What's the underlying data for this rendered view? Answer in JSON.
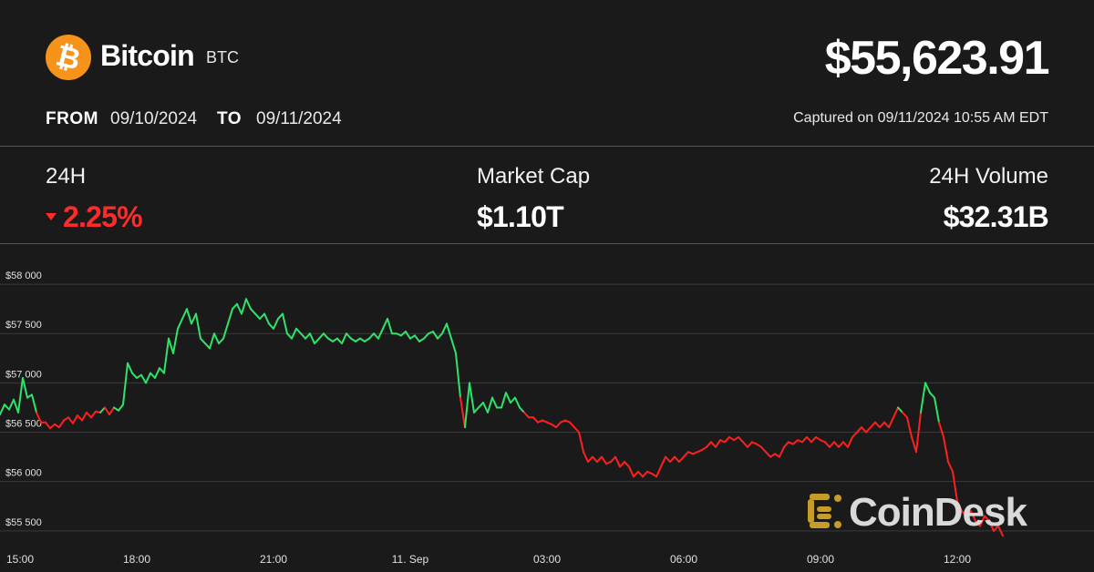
{
  "header": {
    "coin_name": "Bitcoin",
    "coin_symbol": "BTC",
    "logo_glyph": "₿",
    "logo_color": "#f7931a",
    "price": "$55,623.91",
    "from_label": "FROM",
    "from_date": "09/10/2024",
    "to_label": "TO",
    "to_date": "09/11/2024",
    "captured": "Captured on 09/11/2024 10:55 AM EDT"
  },
  "stats": {
    "change_label": "24H",
    "change_value": "2.25%",
    "change_direction": "down",
    "market_cap_label": "Market Cap",
    "market_cap_value": "$1.10T",
    "volume_label": "24H Volume",
    "volume_value": "$32.31B"
  },
  "colors": {
    "background": "#1a1a1a",
    "up": "#2ee36a",
    "down": "#ff1f1f",
    "gridline": "#3a3a3a"
  },
  "watermark": {
    "text": "CoinDesk",
    "icon": "coindesk-logo-icon"
  },
  "chart_data": {
    "type": "line",
    "x_unit": "hour",
    "x_ticks": [
      {
        "x": 15,
        "label": "15:00"
      },
      {
        "x": 18,
        "label": "18:00"
      },
      {
        "x": 21,
        "label": "21:00"
      },
      {
        "x": 24,
        "label": "11. Sep"
      },
      {
        "x": 27,
        "label": "03:00"
      },
      {
        "x": 30,
        "label": "06:00"
      },
      {
        "x": 33,
        "label": "09:00"
      },
      {
        "x": 36,
        "label": "12:00"
      }
    ],
    "y_ticks": [
      {
        "y": 55500,
        "label": "$55 500"
      },
      {
        "y": 56000,
        "label": "$56 000"
      },
      {
        "y": 56500,
        "label": "$56 500"
      },
      {
        "y": 57000,
        "label": "$57 000"
      },
      {
        "y": 57500,
        "label": "$57 500"
      },
      {
        "y": 58000,
        "label": "$58 000"
      }
    ],
    "xlim": [
      15,
      39
    ],
    "ylim": [
      55360,
      58130
    ],
    "grid": true,
    "baseline": 56720,
    "points": [
      [
        15.0,
        56680
      ],
      [
        15.1,
        56780
      ],
      [
        15.2,
        56730
      ],
      [
        15.3,
        56830
      ],
      [
        15.4,
        56700
      ],
      [
        15.5,
        57050
      ],
      [
        15.6,
        56850
      ],
      [
        15.7,
        56880
      ],
      [
        15.8,
        56700
      ],
      [
        15.9,
        56600
      ],
      [
        16.0,
        56600
      ],
      [
        16.1,
        56540
      ],
      [
        16.2,
        56580
      ],
      [
        16.3,
        56550
      ],
      [
        16.4,
        56620
      ],
      [
        16.5,
        56650
      ],
      [
        16.6,
        56590
      ],
      [
        16.7,
        56670
      ],
      [
        16.8,
        56620
      ],
      [
        16.9,
        56700
      ],
      [
        17.0,
        56650
      ],
      [
        17.1,
        56710
      ],
      [
        17.2,
        56700
      ],
      [
        17.3,
        56750
      ],
      [
        17.4,
        56680
      ],
      [
        17.5,
        56750
      ],
      [
        17.6,
        56720
      ],
      [
        17.7,
        56780
      ],
      [
        17.8,
        57200
      ],
      [
        17.9,
        57100
      ],
      [
        18.0,
        57050
      ],
      [
        18.1,
        57080
      ],
      [
        18.2,
        57000
      ],
      [
        18.3,
        57100
      ],
      [
        18.4,
        57050
      ],
      [
        18.5,
        57150
      ],
      [
        18.6,
        57100
      ],
      [
        18.7,
        57450
      ],
      [
        18.8,
        57300
      ],
      [
        18.9,
        57550
      ],
      [
        19.0,
        57650
      ],
      [
        19.1,
        57750
      ],
      [
        19.2,
        57600
      ],
      [
        19.3,
        57700
      ],
      [
        19.4,
        57450
      ],
      [
        19.5,
        57400
      ],
      [
        19.6,
        57350
      ],
      [
        19.7,
        57500
      ],
      [
        19.8,
        57400
      ],
      [
        19.9,
        57450
      ],
      [
        20.0,
        57600
      ],
      [
        20.1,
        57750
      ],
      [
        20.2,
        57800
      ],
      [
        20.3,
        57700
      ],
      [
        20.4,
        57850
      ],
      [
        20.5,
        57750
      ],
      [
        20.6,
        57700
      ],
      [
        20.7,
        57650
      ],
      [
        20.8,
        57700
      ],
      [
        20.9,
        57600
      ],
      [
        21.0,
        57550
      ],
      [
        21.1,
        57650
      ],
      [
        21.2,
        57700
      ],
      [
        21.3,
        57500
      ],
      [
        21.4,
        57450
      ],
      [
        21.5,
        57550
      ],
      [
        21.6,
        57500
      ],
      [
        21.7,
        57450
      ],
      [
        21.8,
        57500
      ],
      [
        21.9,
        57400
      ],
      [
        22.0,
        57450
      ],
      [
        22.1,
        57500
      ],
      [
        22.2,
        57450
      ],
      [
        22.3,
        57420
      ],
      [
        22.4,
        57450
      ],
      [
        22.5,
        57400
      ],
      [
        22.6,
        57500
      ],
      [
        22.7,
        57450
      ],
      [
        22.8,
        57420
      ],
      [
        22.9,
        57450
      ],
      [
        23.0,
        57420
      ],
      [
        23.1,
        57450
      ],
      [
        23.2,
        57500
      ],
      [
        23.3,
        57450
      ],
      [
        23.4,
        57550
      ],
      [
        23.5,
        57650
      ],
      [
        23.6,
        57500
      ],
      [
        23.7,
        57500
      ],
      [
        23.8,
        57480
      ],
      [
        23.9,
        57520
      ],
      [
        24.0,
        57450
      ],
      [
        24.1,
        57480
      ],
      [
        24.2,
        57420
      ],
      [
        24.3,
        57450
      ],
      [
        24.4,
        57500
      ],
      [
        24.5,
        57520
      ],
      [
        24.6,
        57450
      ],
      [
        24.7,
        57500
      ],
      [
        24.8,
        57600
      ],
      [
        24.9,
        57450
      ],
      [
        25.0,
        57300
      ],
      [
        25.1,
        56850
      ],
      [
        25.2,
        56550
      ],
      [
        25.3,
        57000
      ],
      [
        25.4,
        56700
      ],
      [
        25.5,
        56750
      ],
      [
        25.6,
        56800
      ],
      [
        25.7,
        56700
      ],
      [
        25.8,
        56850
      ],
      [
        25.9,
        56750
      ],
      [
        26.0,
        56750
      ],
      [
        26.1,
        56900
      ],
      [
        26.2,
        56800
      ],
      [
        26.3,
        56850
      ],
      [
        26.4,
        56750
      ],
      [
        26.5,
        56700
      ],
      [
        26.6,
        56650
      ],
      [
        26.7,
        56650
      ],
      [
        26.8,
        56600
      ],
      [
        26.9,
        56620
      ],
      [
        27.0,
        56600
      ],
      [
        27.1,
        56580
      ],
      [
        27.2,
        56550
      ],
      [
        27.3,
        56600
      ],
      [
        27.4,
        56620
      ],
      [
        27.5,
        56600
      ],
      [
        27.6,
        56550
      ],
      [
        27.7,
        56500
      ],
      [
        27.8,
        56300
      ],
      [
        27.9,
        56200
      ],
      [
        28.0,
        56250
      ],
      [
        28.1,
        56200
      ],
      [
        28.2,
        56250
      ],
      [
        28.3,
        56180
      ],
      [
        28.4,
        56200
      ],
      [
        28.5,
        56250
      ],
      [
        28.6,
        56150
      ],
      [
        28.7,
        56200
      ],
      [
        28.8,
        56150
      ],
      [
        28.9,
        56050
      ],
      [
        29.0,
        56100
      ],
      [
        29.1,
        56050
      ],
      [
        29.2,
        56100
      ],
      [
        29.3,
        56080
      ],
      [
        29.4,
        56050
      ],
      [
        29.5,
        56150
      ],
      [
        29.6,
        56250
      ],
      [
        29.7,
        56200
      ],
      [
        29.8,
        56250
      ],
      [
        29.9,
        56200
      ],
      [
        30.0,
        56250
      ],
      [
        30.1,
        56300
      ],
      [
        30.2,
        56280
      ],
      [
        30.3,
        56300
      ],
      [
        30.4,
        56320
      ],
      [
        30.5,
        56350
      ],
      [
        30.6,
        56400
      ],
      [
        30.7,
        56350
      ],
      [
        30.8,
        56420
      ],
      [
        30.9,
        56400
      ],
      [
        31.0,
        56450
      ],
      [
        31.1,
        56420
      ],
      [
        31.2,
        56450
      ],
      [
        31.3,
        56400
      ],
      [
        31.4,
        56350
      ],
      [
        31.5,
        56400
      ],
      [
        31.6,
        56380
      ],
      [
        31.7,
        56350
      ],
      [
        31.8,
        56300
      ],
      [
        31.9,
        56250
      ],
      [
        32.0,
        56280
      ],
      [
        32.1,
        56250
      ],
      [
        32.2,
        56350
      ],
      [
        32.3,
        56400
      ],
      [
        32.4,
        56380
      ],
      [
        32.5,
        56420
      ],
      [
        32.6,
        56400
      ],
      [
        32.7,
        56450
      ],
      [
        32.8,
        56400
      ],
      [
        32.9,
        56450
      ],
      [
        33.0,
        56420
      ],
      [
        33.1,
        56400
      ],
      [
        33.2,
        56350
      ],
      [
        33.3,
        56400
      ],
      [
        33.4,
        56350
      ],
      [
        33.5,
        56400
      ],
      [
        33.6,
        56350
      ],
      [
        33.7,
        56450
      ],
      [
        33.8,
        56500
      ],
      [
        33.9,
        56550
      ],
      [
        34.0,
        56500
      ],
      [
        34.1,
        56550
      ],
      [
        34.2,
        56600
      ],
      [
        34.3,
        56550
      ],
      [
        34.4,
        56600
      ],
      [
        34.5,
        56550
      ],
      [
        34.6,
        56650
      ],
      [
        34.7,
        56750
      ],
      [
        34.8,
        56700
      ],
      [
        34.9,
        56650
      ],
      [
        35.0,
        56450
      ],
      [
        35.1,
        56300
      ],
      [
        35.2,
        56700
      ],
      [
        35.3,
        57000
      ],
      [
        35.4,
        56900
      ],
      [
        35.5,
        56850
      ],
      [
        35.6,
        56600
      ],
      [
        35.7,
        56450
      ],
      [
        35.8,
        56200
      ],
      [
        35.9,
        56100
      ],
      [
        36.0,
        55800
      ],
      [
        36.1,
        55700
      ],
      [
        36.2,
        55650
      ],
      [
        36.3,
        55700
      ],
      [
        36.4,
        55600
      ],
      [
        36.5,
        55550
      ],
      [
        36.6,
        55650
      ],
      [
        36.7,
        55600
      ],
      [
        36.8,
        55500
      ],
      [
        36.9,
        55550
      ],
      [
        37.0,
        55450
      ]
    ]
  }
}
